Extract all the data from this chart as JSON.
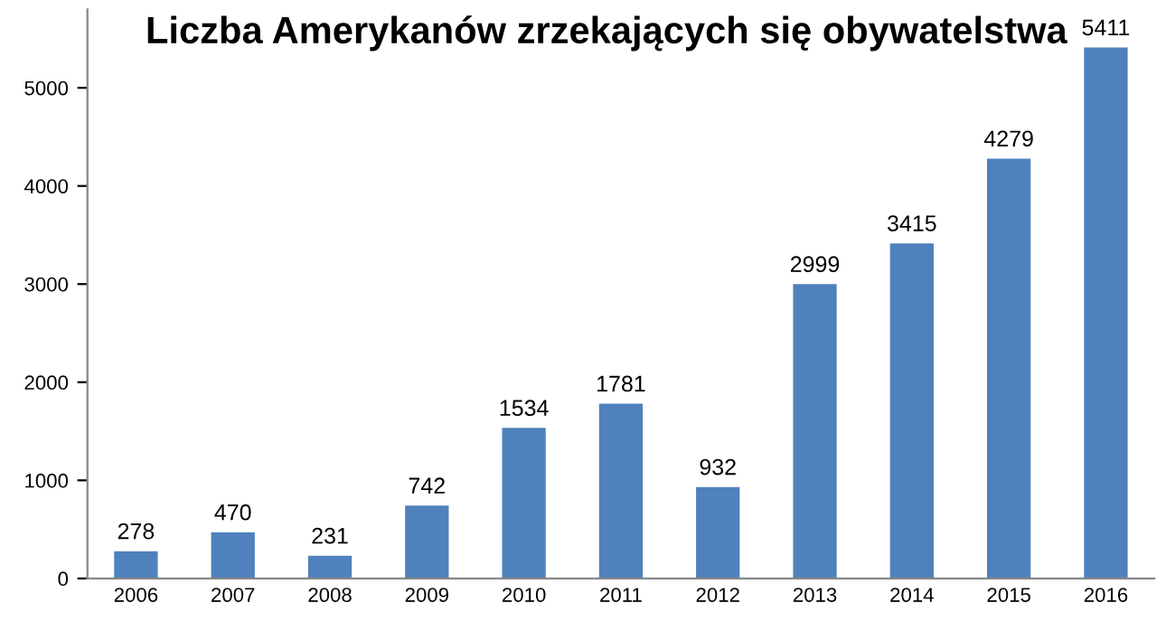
{
  "chart_data": {
    "type": "bar",
    "title": "Liczba Amerykanów zrzekających się obywatelstwa",
    "categories": [
      "2006",
      "2007",
      "2008",
      "2009",
      "2010",
      "2011",
      "2012",
      "2013",
      "2014",
      "2015",
      "2016"
    ],
    "values": [
      278,
      470,
      231,
      742,
      1534,
      1781,
      932,
      2999,
      3415,
      4279,
      5411
    ],
    "color": "#4f81bd",
    "ylim": [
      0,
      5800
    ],
    "yticks": [
      0,
      1000,
      2000,
      3000,
      4000,
      5000
    ],
    "data_labels": true,
    "grid": false,
    "legend": false
  }
}
